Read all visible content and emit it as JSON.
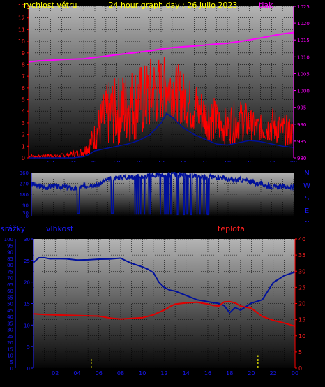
{
  "colors": {
    "wind": "#ff0000",
    "pressure": "#ff00ff",
    "direction": "#00109c",
    "humidity": "#00109c",
    "temperature": "#e00000",
    "rain": "#ffff00",
    "title": "#ffff00",
    "rainAxis": "#1a1aff",
    "windLabel": "#ffff00",
    "pressureLabel": "#ff00ff",
    "humidityLabel": "#1a1aff",
    "tempLabel": "#ff2020"
  },
  "chart_data": [
    {
      "type": "line",
      "title": "24 hour graph day : 26 Julio 2023",
      "left_label": "rychlost větru",
      "right_label": "tlak",
      "ylim_left": [
        0,
        13
      ],
      "ylim_right": [
        980,
        1025
      ],
      "yticks_left": [
        "0",
        "1",
        "2",
        "3",
        "4",
        "5",
        "6",
        "7",
        "8",
        "9",
        "10",
        "11",
        "12",
        "13"
      ],
      "yticks_right": [
        "980",
        "985",
        "990",
        "995",
        "1000",
        "1005",
        "1010",
        "1015",
        "1020",
        "1025"
      ],
      "xlim": [
        0,
        24
      ],
      "xticks": [
        "02",
        "04",
        "06",
        "08",
        "10",
        "12",
        "14",
        "16",
        "18",
        "20",
        "22",
        "00"
      ],
      "series": [
        {
          "key": "wind_gust",
          "axis": "left",
          "x": [
            0.0,
            0.5,
            1.0,
            1.5,
            2.0,
            2.5,
            3.0,
            3.5,
            4.0,
            4.5,
            5.0,
            5.5,
            6.0,
            6.5,
            7.0,
            7.5,
            8.0,
            8.5,
            9.0,
            9.5,
            10.0,
            10.5,
            11.0,
            11.5,
            12.0,
            12.5,
            13.0,
            13.5,
            14.0,
            14.5,
            15.0,
            15.5,
            16.0,
            16.5,
            17.0,
            17.5,
            18.0,
            18.5,
            19.0,
            19.5,
            20.0,
            20.5,
            21.0,
            21.5,
            22.0,
            22.5,
            23.0,
            23.5,
            24.0
          ],
          "values": [
            0.3,
            0.2,
            0.2,
            0.3,
            0.3,
            0.2,
            0.3,
            0.4,
            0.5,
            0.6,
            0.8,
            1.5,
            2.5,
            4.0,
            5.0,
            5.5,
            5.5,
            6.0,
            6.0,
            6.5,
            6.5,
            6.5,
            7.0,
            7.2,
            7.0,
            7.0,
            6.8,
            6.5,
            6.0,
            5.5,
            5.5,
            5.0,
            4.5,
            4.5,
            4.0,
            3.5,
            3.5,
            4.0,
            4.0,
            4.0,
            3.5,
            3.0,
            3.0,
            3.0,
            3.5,
            3.5,
            3.0,
            3.0,
            2.5
          ]
        },
        {
          "key": "wind_avg",
          "axis": "left",
          "x": [
            0,
            1,
            2,
            3,
            4,
            5,
            5.5,
            6,
            7,
            8,
            9,
            10,
            11,
            12,
            12.5,
            13,
            14,
            15,
            16,
            17,
            18,
            19,
            20,
            21,
            22,
            23,
            24
          ],
          "values": [
            0,
            0,
            0,
            0,
            0,
            0.1,
            0.3,
            0.6,
            0.8,
            1.0,
            1.2,
            1.5,
            2.0,
            3.0,
            3.8,
            3.5,
            2.6,
            2.0,
            1.6,
            1.2,
            1.1,
            1.3,
            1.5,
            1.4,
            1.2,
            1.0,
            0.9
          ]
        },
        {
          "key": "pressure",
          "axis": "right",
          "x": [
            0,
            1,
            2,
            3,
            4,
            5,
            6,
            7,
            8,
            9,
            10,
            11,
            12,
            13,
            14,
            15,
            16,
            17,
            18,
            19,
            20,
            21,
            22,
            23,
            24
          ],
          "values": [
            1008.5,
            1008.8,
            1009.0,
            1009.2,
            1009.3,
            1009.4,
            1009.8,
            1010.2,
            1010.6,
            1011.0,
            1011.4,
            1011.8,
            1012.3,
            1012.7,
            1013.0,
            1013.2,
            1013.5,
            1013.8,
            1014.0,
            1014.5,
            1015.0,
            1015.6,
            1016.2,
            1016.8,
            1017.2
          ]
        }
      ]
    },
    {
      "type": "line",
      "ylim": [
        0,
        360
      ],
      "yticks": [
        "0",
        "30",
        "90",
        "180",
        "270",
        "360"
      ],
      "right_labels": [
        "N",
        "W",
        "S",
        "E",
        "N"
      ],
      "xlim": [
        0,
        24
      ],
      "series": [
        {
          "key": "direction",
          "x": [
            0,
            0.5,
            1,
            1.5,
            2,
            2.5,
            3,
            3.5,
            4,
            4.5,
            5,
            5.5,
            6,
            6.5,
            7,
            7.5,
            8,
            8.5,
            9,
            9.5,
            10,
            10.5,
            11,
            11.5,
            12,
            12.5,
            13,
            13.5,
            14,
            14.5,
            15,
            15.5,
            16,
            16.5,
            17,
            17.5,
            18,
            18.5,
            19,
            19.5,
            20,
            20.5,
            21,
            21.5,
            22,
            22.5,
            23,
            23.5,
            24
          ],
          "values": [
            270,
            250,
            240,
            235,
            255,
            240,
            245,
            235,
            225,
            240,
            250,
            260,
            255,
            280,
            300,
            315,
            320,
            325,
            320,
            330,
            325,
            330,
            335,
            340,
            335,
            340,
            345,
            340,
            340,
            335,
            335,
            330,
            330,
            325,
            320,
            320,
            300,
            295,
            300,
            295,
            290,
            270,
            270,
            250,
            240,
            240,
            245,
            240,
            235
          ]
        }
      ]
    },
    {
      "type": "line",
      "left_label": "srážky",
      "mid_label": "vlhkost",
      "right_label": "teplota",
      "ylim_rain": [
        0,
        100
      ],
      "ylim_humidity": [
        0,
        30
      ],
      "ylim_temp": [
        0,
        40
      ],
      "yticks_rain": [
        "0",
        "5",
        "10",
        "15",
        "20",
        "25",
        "30",
        "35",
        "40",
        "45",
        "50",
        "55",
        "60",
        "65",
        "70",
        "75",
        "80",
        "85",
        "90",
        "95",
        "100"
      ],
      "yticks_humidity": [
        "0",
        "5",
        "10",
        "15",
        "20",
        "25",
        "30"
      ],
      "yticks_temp": [
        "0",
        "5",
        "10",
        "15",
        "20",
        "25",
        "30",
        "35",
        "40"
      ],
      "xlim": [
        0,
        24
      ],
      "xticks": [
        "02",
        "04",
        "06",
        "08",
        "10",
        "12",
        "14",
        "16",
        "18",
        "20",
        "22",
        "00"
      ],
      "series": [
        {
          "key": "humidity",
          "axis": "humidity",
          "x": [
            0,
            0.5,
            1,
            1.5,
            2,
            3,
            4,
            5,
            6,
            7,
            8,
            8.5,
            9,
            10,
            10.5,
            11,
            11.5,
            12,
            12.5,
            13,
            14,
            14.5,
            15,
            16,
            16.5,
            17,
            17.5,
            18,
            18.5,
            19,
            20,
            21,
            22,
            23,
            24
          ],
          "values": [
            24.5,
            25.5,
            25.7,
            25.5,
            25.5,
            25.3,
            25.2,
            25.2,
            25.2,
            25.4,
            25.5,
            24.8,
            24.2,
            23.5,
            23.0,
            22.2,
            20.0,
            18.7,
            18.2,
            17.8,
            17.0,
            16.3,
            16.0,
            15.5,
            15.2,
            15.0,
            14.5,
            12.8,
            14.0,
            13.5,
            15.0,
            16.0,
            20.0,
            21.5,
            22.2
          ]
        },
        {
          "key": "temperature",
          "axis": "temp",
          "x": [
            0,
            1,
            2,
            3,
            4,
            5,
            6,
            7,
            8,
            9,
            10,
            11,
            12,
            12.5,
            13,
            14,
            15,
            16,
            16.5,
            17,
            17.5,
            18,
            18.5,
            19,
            20,
            21,
            22,
            23,
            24
          ],
          "values": [
            16.8,
            16.6,
            16.5,
            16.4,
            16.3,
            16.2,
            16.1,
            15.5,
            15.2,
            15.4,
            15.6,
            16.5,
            18.0,
            19.0,
            19.8,
            20.2,
            20.4,
            19.8,
            19.4,
            19.2,
            20.5,
            20.6,
            20.2,
            19.2,
            18.5,
            16.0,
            14.8,
            14.0,
            13.0
          ]
        },
        {
          "key": "rain",
          "axis": "rain",
          "x": [
            5.3,
            20.6
          ],
          "values": [
            8,
            10
          ]
        }
      ]
    }
  ]
}
